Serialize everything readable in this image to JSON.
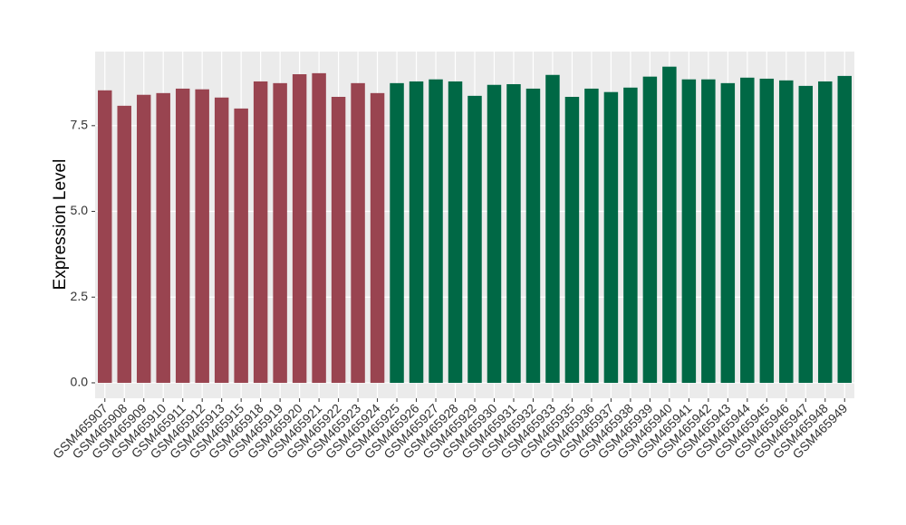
{
  "chart_data": {
    "type": "bar",
    "y_label": "Expression Level",
    "categories": [
      "GSM465907",
      "GSM465908",
      "GSM465909",
      "GSM465910",
      "GSM465911",
      "GSM465912",
      "GSM465913",
      "GSM465915",
      "GSM465918",
      "GSM465919",
      "GSM465920",
      "GSM465921",
      "GSM465922",
      "GSM465923",
      "GSM465924",
      "GSM465925",
      "GSM465926",
      "GSM465927",
      "GSM465928",
      "GSM465929",
      "GSM465930",
      "GSM465931",
      "GSM465932",
      "GSM465933",
      "GSM465935",
      "GSM465936",
      "GSM465937",
      "GSM465938",
      "GSM465939",
      "GSM465940",
      "GSM465941",
      "GSM465942",
      "GSM465943",
      "GSM465944",
      "GSM465945",
      "GSM465946",
      "GSM465947",
      "GSM465948",
      "GSM465949"
    ],
    "values": [
      8.53,
      8.08,
      8.4,
      8.45,
      8.58,
      8.56,
      8.32,
      8.0,
      8.79,
      8.74,
      9.0,
      9.03,
      8.34,
      8.74,
      8.45,
      8.74,
      8.79,
      8.85,
      8.79,
      8.37,
      8.69,
      8.71,
      8.58,
      8.98,
      8.34,
      8.58,
      8.48,
      8.61,
      8.93,
      9.22,
      8.85,
      8.85,
      8.74,
      8.9,
      8.87,
      8.82,
      8.66,
      8.79,
      8.95
    ],
    "colors": [
      "#994450",
      "#994450",
      "#994450",
      "#994450",
      "#994450",
      "#994450",
      "#994450",
      "#994450",
      "#994450",
      "#994450",
      "#994450",
      "#994450",
      "#994450",
      "#994450",
      "#994450",
      "#006845",
      "#006845",
      "#006845",
      "#006845",
      "#006845",
      "#006845",
      "#006845",
      "#006845",
      "#006845",
      "#006845",
      "#006845",
      "#006845",
      "#006845",
      "#006845",
      "#006845",
      "#006845",
      "#006845",
      "#006845",
      "#006845",
      "#006845",
      "#006845",
      "#006845",
      "#006845",
      "#006845"
    ],
    "ylim": [
      -0.45,
      9.66
    ],
    "yticks": [
      {
        "value": 0,
        "label": "0.0"
      },
      2.5,
      {
        "value": 5,
        "label": "5.0"
      },
      7.5
    ],
    "grid": true
  }
}
